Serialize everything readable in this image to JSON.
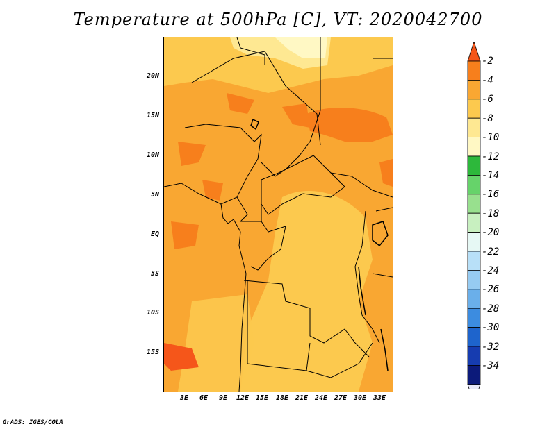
{
  "title": "Temperature at 500hPa [C], VT: 2020042700",
  "credit": "GrADS: IGES/COLA",
  "map": {
    "lat_labels": [
      "20N",
      "15N",
      "10N",
      "5N",
      "EQ",
      "5S",
      "10S",
      "15S"
    ],
    "lon_labels": [
      "3E",
      "6E",
      "9E",
      "12E",
      "15E",
      "18E",
      "21E",
      "24E",
      "27E",
      "30E",
      "33E"
    ],
    "region": "Central Africa",
    "base_color": "#F9A732"
  },
  "colorbar": {
    "levels": [
      "-2",
      "-4",
      "-6",
      "-8",
      "-10",
      "-12",
      "-14",
      "-16",
      "-18",
      "-20",
      "-22",
      "-24",
      "-26",
      "-28",
      "-30",
      "-32",
      "-34"
    ],
    "colors": [
      "#F5561A",
      "#F77F1C",
      "#F9A732",
      "#FCC94E",
      "#FEE892",
      "#FFF8C4",
      "#2DB83B",
      "#66D36A",
      "#98E08E",
      "#C8F0C0",
      "#E6F8F4",
      "#B8E0F8",
      "#96CBF2",
      "#6AAFEA",
      "#3C8CE0",
      "#1E64CC",
      "#163CB0",
      "#0C1A7A",
      "#E8E8F8"
    ]
  }
}
